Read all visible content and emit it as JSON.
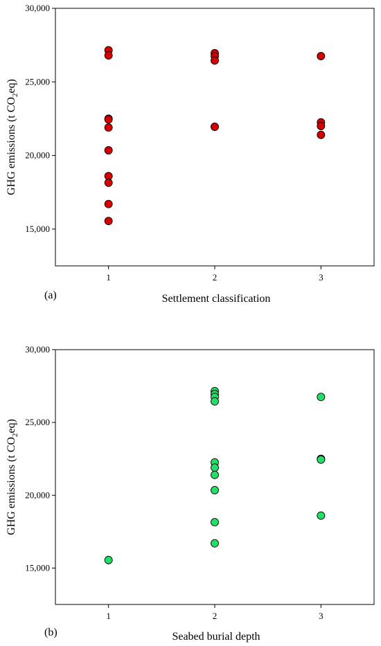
{
  "chart_data": [
    {
      "type": "scatter",
      "panel_label": "(a)",
      "xlabel": "Settlement classification",
      "ylabel": {
        "main": "GHG emissions (t CO",
        "sub": "2",
        "tail": "eq)"
      },
      "xlim": [
        0.5,
        3.5
      ],
      "ylim": [
        12500,
        30000
      ],
      "xticks": [
        1,
        2,
        3
      ],
      "xtick_labels": [
        "1",
        "2",
        "3"
      ],
      "yticks": [
        15000,
        20000,
        25000,
        30000
      ],
      "ytick_labels": [
        "15,000",
        "20,000",
        "25,000",
        "30,000"
      ],
      "marker_color": "#d40000",
      "points": [
        {
          "x": 1,
          "y": 27150
        },
        {
          "x": 1,
          "y": 26800
        },
        {
          "x": 1,
          "y": 22500
        },
        {
          "x": 1,
          "y": 22450
        },
        {
          "x": 1,
          "y": 21900
        },
        {
          "x": 1,
          "y": 20350
        },
        {
          "x": 1,
          "y": 18600
        },
        {
          "x": 1,
          "y": 18150
        },
        {
          "x": 1,
          "y": 16700
        },
        {
          "x": 1,
          "y": 15550
        },
        {
          "x": 2,
          "y": 26950
        },
        {
          "x": 2,
          "y": 26750
        },
        {
          "x": 2,
          "y": 26450
        },
        {
          "x": 2,
          "y": 21950
        },
        {
          "x": 3,
          "y": 26750
        },
        {
          "x": 3,
          "y": 22250
        },
        {
          "x": 3,
          "y": 22000
        },
        {
          "x": 3,
          "y": 21400
        }
      ]
    },
    {
      "type": "scatter",
      "panel_label": "(b)",
      "xlabel": "Seabed burial depth",
      "ylabel": {
        "main": "GHG emissions (t CO",
        "sub": "2",
        "tail": "eq)"
      },
      "xlim": [
        0.5,
        3.5
      ],
      "ylim": [
        12500,
        30000
      ],
      "xticks": [
        1,
        2,
        3
      ],
      "xtick_labels": [
        "1",
        "2",
        "3"
      ],
      "yticks": [
        15000,
        20000,
        25000,
        30000
      ],
      "ytick_labels": [
        "15,000",
        "20,000",
        "25,000",
        "30,000"
      ],
      "marker_color": "#22dd66",
      "points": [
        {
          "x": 1,
          "y": 15550
        },
        {
          "x": 2,
          "y": 27150
        },
        {
          "x": 2,
          "y": 26950
        },
        {
          "x": 2,
          "y": 26750
        },
        {
          "x": 2,
          "y": 26450
        },
        {
          "x": 2,
          "y": 22250
        },
        {
          "x": 2,
          "y": 21900
        },
        {
          "x": 2,
          "y": 21400
        },
        {
          "x": 2,
          "y": 20350
        },
        {
          "x": 2,
          "y": 18150
        },
        {
          "x": 2,
          "y": 16700
        },
        {
          "x": 3,
          "y": 26750
        },
        {
          "x": 3,
          "y": 22500
        },
        {
          "x": 3,
          "y": 22450
        },
        {
          "x": 3,
          "y": 18600
        }
      ]
    }
  ]
}
